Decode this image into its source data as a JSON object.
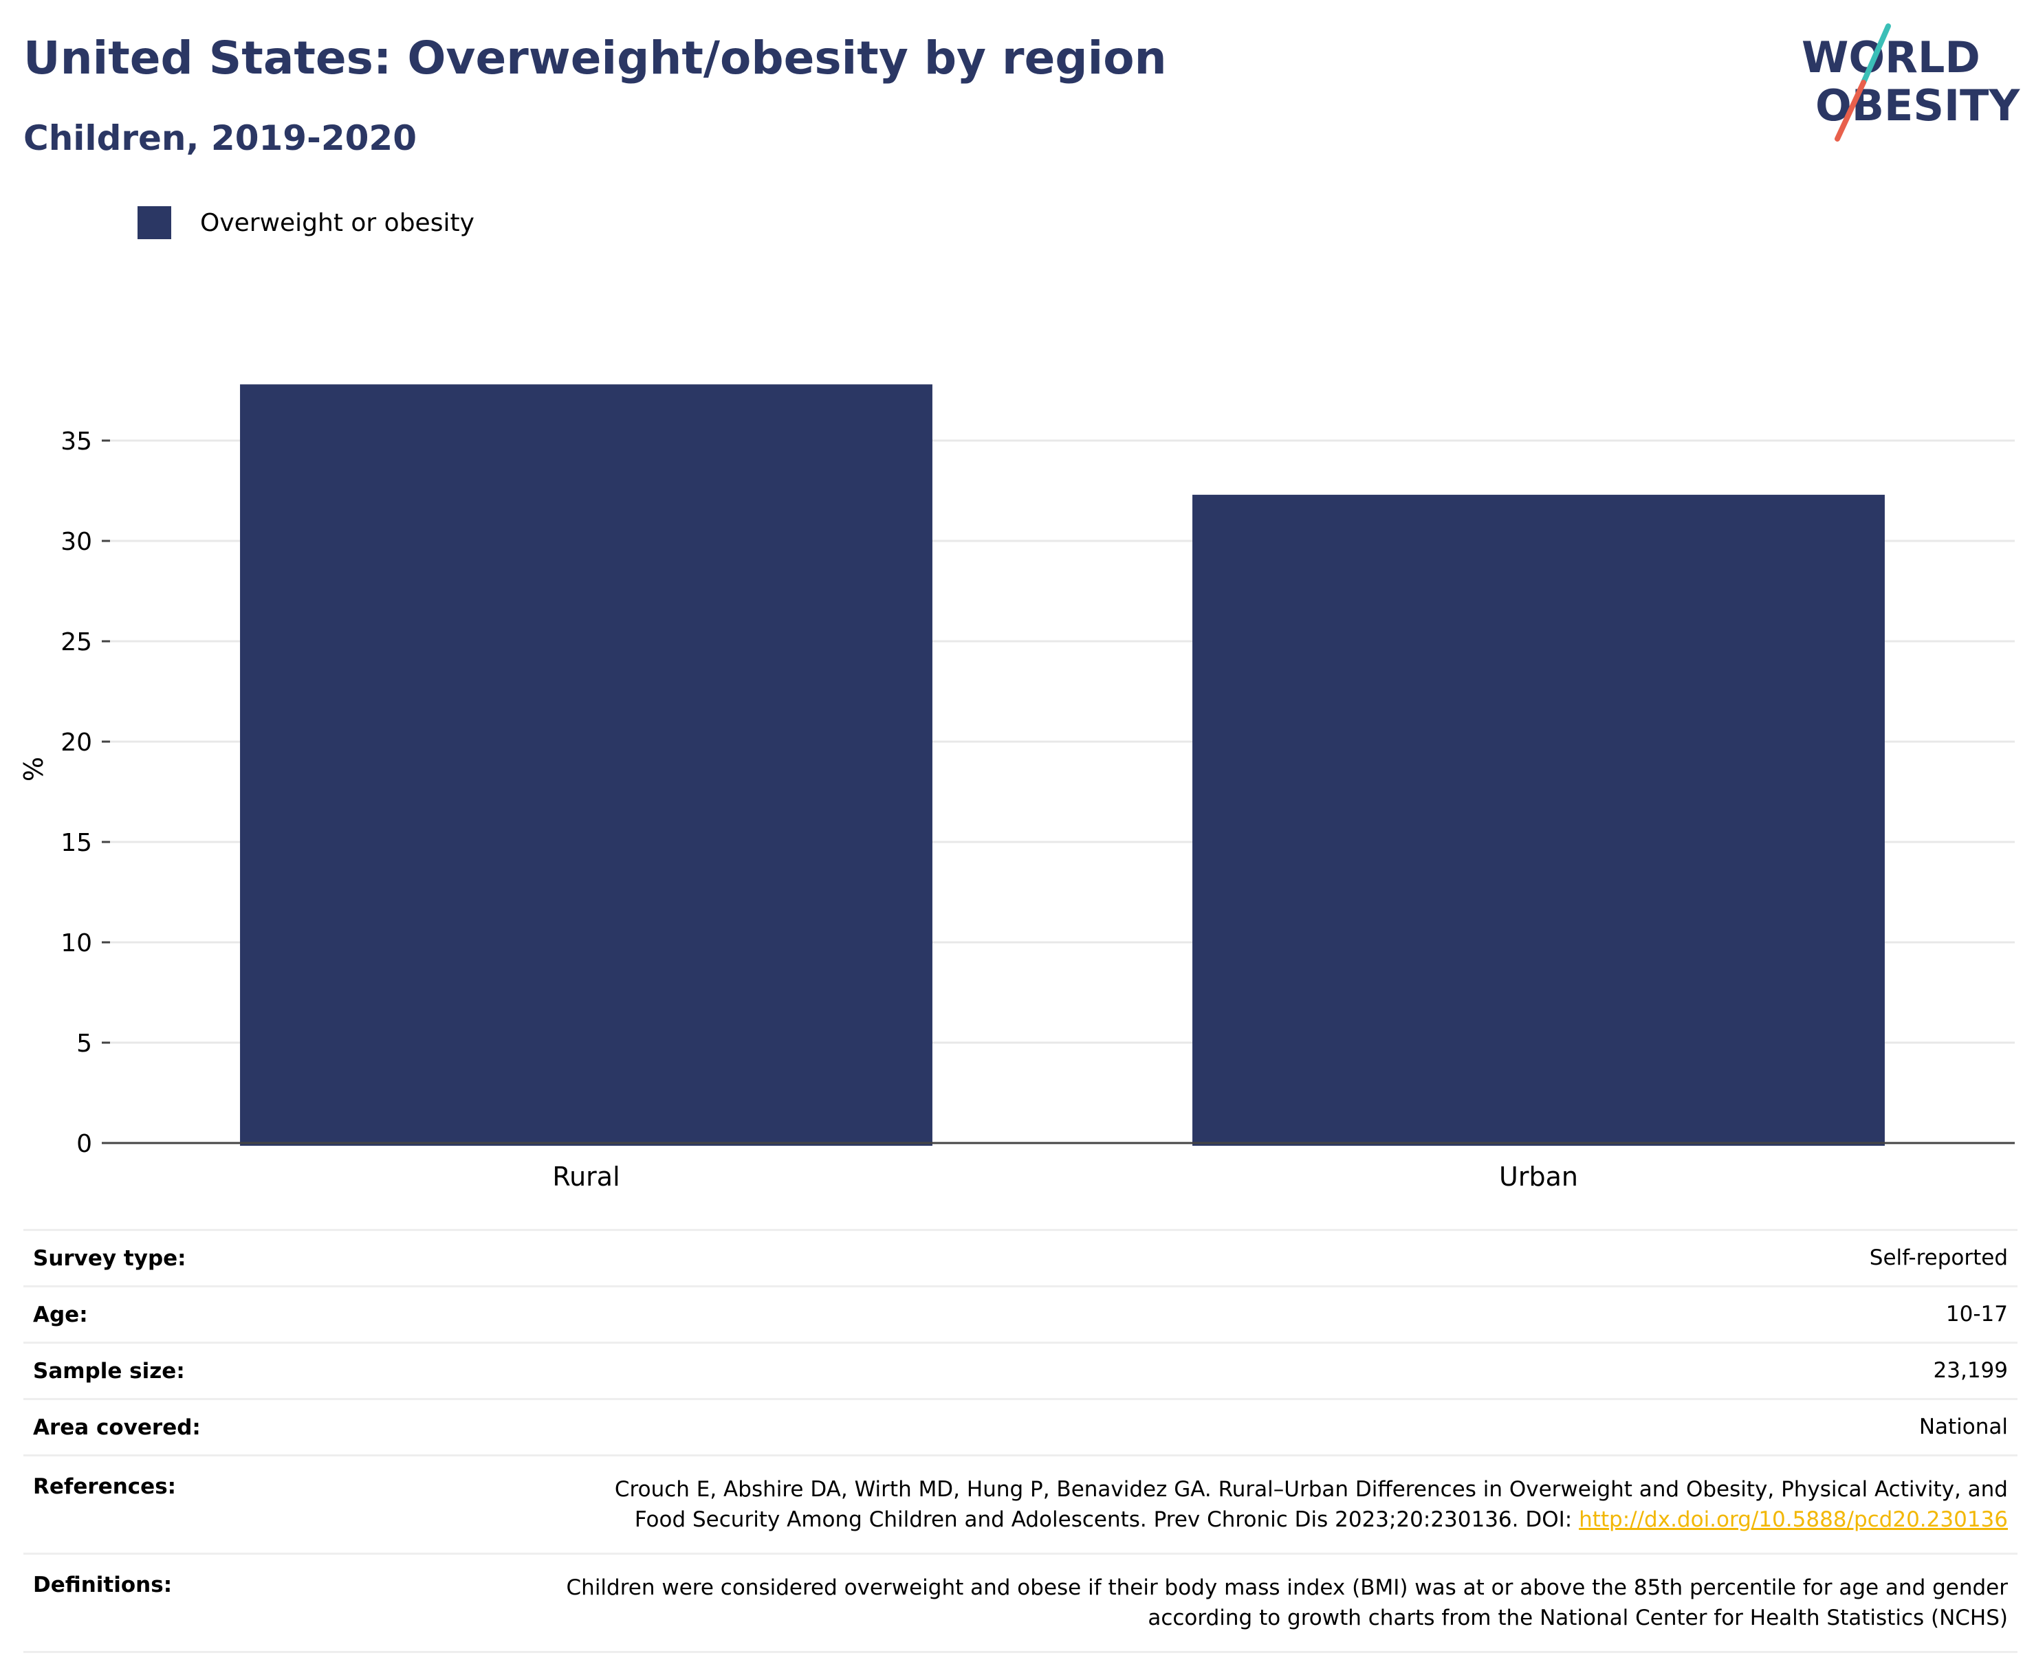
{
  "header": {
    "title": "United States: Overweight/obesity by region",
    "subtitle": "Children, 2019-2020"
  },
  "logo": {
    "line1": "WORLD",
    "line2": "OBESITY",
    "colors": {
      "text": "#2b3764",
      "slash_teal": "#3bbfb7",
      "slash_red": "#e8604c"
    }
  },
  "legend": {
    "items": [
      {
        "label": "Overweight or obesity",
        "color": "#2b3764"
      }
    ]
  },
  "chart_data": {
    "type": "bar",
    "categories": [
      "Rural",
      "Urban"
    ],
    "series": [
      {
        "name": "Overweight or obesity",
        "values": [
          37.8,
          32.3
        ],
        "color": "#2b3764"
      }
    ],
    "ylabel": "%",
    "xlabel": "",
    "ylim": [
      0,
      40
    ],
    "yticks": [
      0,
      5,
      10,
      15,
      20,
      25,
      30,
      35
    ],
    "grid": true,
    "legend_position": "top-left"
  },
  "metadata": {
    "rows": [
      {
        "label": "Survey type:",
        "value": "Self-reported"
      },
      {
        "label": "Age:",
        "value": "10-17"
      },
      {
        "label": "Sample size:",
        "value": "23,199"
      },
      {
        "label": "Area covered:",
        "value": "National"
      }
    ],
    "references": {
      "label": "References:",
      "line1": "Crouch E, Abshire DA, Wirth MD, Hung P, Benavidez GA. Rural–Urban Differences in Overweight and Obesity, Physical Activity, and",
      "line2_text": "Food Security Among Children and Adolescents. Prev Chronic Dis 2023;20:230136. DOI: ",
      "link": "http://dx.doi.org/10.5888/pcd20.230136"
    },
    "definitions": {
      "label": "Definitions:",
      "line1": "Children were considered overweight and obese if their body mass index (BMI) was at or above the 85th percentile for age and gender",
      "line2": "according to growth charts from the National Center for Health Statistics (NCHS)"
    }
  }
}
